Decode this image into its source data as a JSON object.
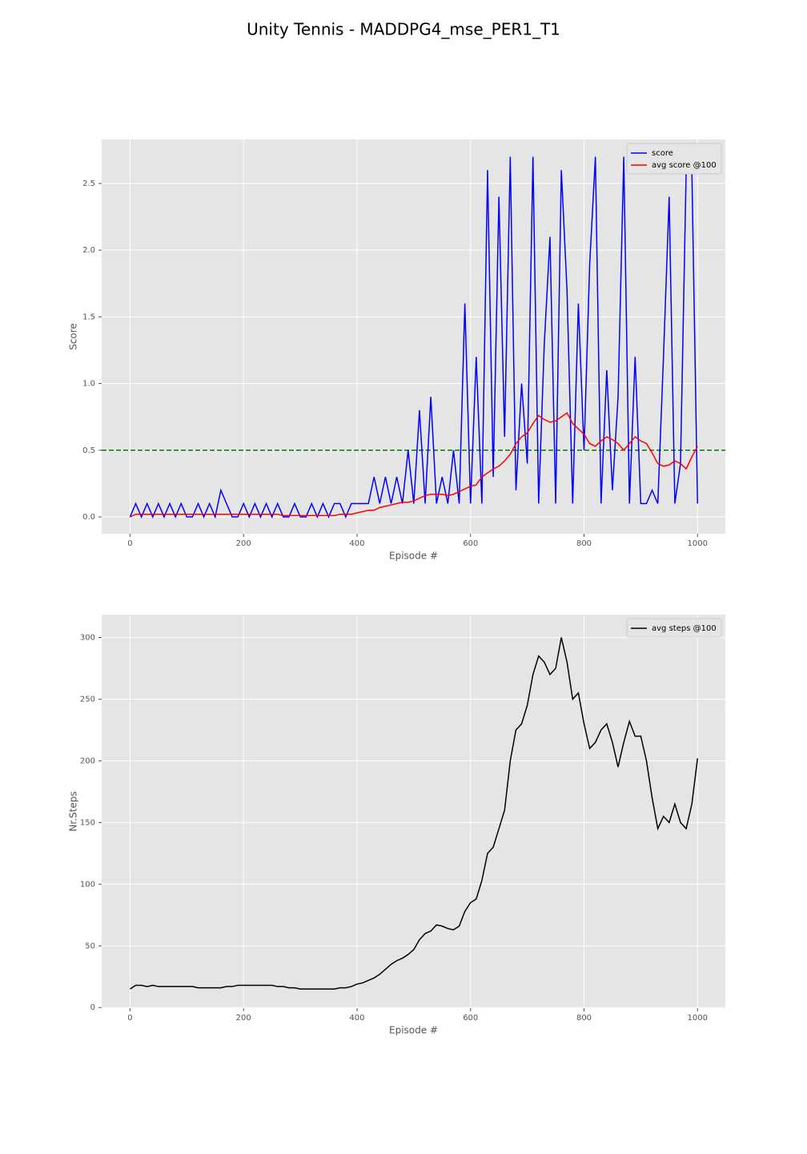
{
  "title": "Unity Tennis - MADDPG4_mse_PER1_T1",
  "chart_data": [
    {
      "type": "line",
      "xlabel": "Episode #",
      "ylabel": "Score",
      "x": [
        0,
        10,
        20,
        30,
        40,
        50,
        60,
        70,
        80,
        90,
        100,
        110,
        120,
        130,
        140,
        150,
        160,
        170,
        180,
        190,
        200,
        210,
        220,
        230,
        240,
        250,
        260,
        270,
        280,
        290,
        300,
        310,
        320,
        330,
        340,
        350,
        360,
        370,
        380,
        390,
        400,
        410,
        420,
        430,
        440,
        450,
        460,
        470,
        480,
        490,
        500,
        510,
        520,
        530,
        540,
        550,
        560,
        570,
        580,
        590,
        600,
        610,
        620,
        630,
        640,
        650,
        660,
        670,
        680,
        690,
        700,
        710,
        720,
        730,
        740,
        750,
        760,
        770,
        780,
        790,
        800,
        810,
        820,
        830,
        840,
        850,
        860,
        870,
        880,
        890,
        900,
        910,
        920,
        930,
        940,
        950,
        960,
        970,
        980,
        990,
        1000
      ],
      "series": [
        {
          "name": "score",
          "color": "#0000ff",
          "values": [
            0,
            0.1,
            0,
            0.1,
            0,
            0.1,
            0,
            0.1,
            0,
            0.1,
            0,
            0,
            0.1,
            0,
            0.1,
            0,
            0.2,
            0.1,
            0,
            0,
            0.1,
            0,
            0.1,
            0,
            0.1,
            0,
            0.1,
            0,
            0,
            0.1,
            0,
            0,
            0.1,
            0,
            0.1,
            0,
            0.1,
            0.1,
            0,
            0.1,
            0.1,
            0.1,
            0.1,
            0.3,
            0.1,
            0.3,
            0.1,
            0.3,
            0.1,
            0.5,
            0.1,
            0.8,
            0.1,
            0.9,
            0.1,
            0.3,
            0.1,
            0.5,
            0.1,
            1.6,
            0.1,
            1.2,
            0.1,
            2.6,
            0.3,
            2.4,
            0.6,
            2.7,
            0.2,
            1.0,
            0.4,
            2.7,
            0.1,
            1.3,
            2.1,
            0.1,
            2.6,
            1.7,
            0.1,
            1.6,
            0.5,
            1.9,
            2.7,
            0.1,
            1.1,
            0.2,
            0.9,
            2.7,
            0.1,
            1.2,
            0.1,
            0.1,
            0.2,
            0.1,
            1.2,
            2.4,
            0.1,
            0.4,
            2.6,
            2.6,
            0.1
          ]
        },
        {
          "name": "avg score @100",
          "color": "#ff0000",
          "values": [
            0,
            0.02,
            0.02,
            0.02,
            0.02,
            0.02,
            0.02,
            0.02,
            0.02,
            0.02,
            0.02,
            0.02,
            0.02,
            0.02,
            0.02,
            0.02,
            0.02,
            0.02,
            0.02,
            0.02,
            0.02,
            0.02,
            0.02,
            0.02,
            0.02,
            0.02,
            0.02,
            0.01,
            0.01,
            0.01,
            0.01,
            0.01,
            0.01,
            0.01,
            0.01,
            0.01,
            0.01,
            0.02,
            0.02,
            0.02,
            0.03,
            0.04,
            0.05,
            0.05,
            0.07,
            0.08,
            0.09,
            0.1,
            0.11,
            0.11,
            0.12,
            0.14,
            0.16,
            0.17,
            0.17,
            0.17,
            0.16,
            0.17,
            0.19,
            0.21,
            0.23,
            0.24,
            0.3,
            0.33,
            0.36,
            0.38,
            0.42,
            0.47,
            0.55,
            0.6,
            0.63,
            0.7,
            0.76,
            0.73,
            0.71,
            0.72,
            0.75,
            0.78,
            0.7,
            0.66,
            0.62,
            0.55,
            0.53,
            0.57,
            0.6,
            0.58,
            0.55,
            0.5,
            0.55,
            0.6,
            0.57,
            0.55,
            0.48,
            0.4,
            0.38,
            0.39,
            0.42,
            0.4,
            0.36,
            0.45,
            0.53
          ]
        }
      ],
      "hline": 0.5,
      "hline_color": "#008000",
      "xlim": [
        -50,
        1049
      ],
      "ylim": [
        -0.126,
        2.83
      ],
      "xticks": [
        0,
        200,
        400,
        600,
        800,
        1000
      ],
      "yticks": [
        {
          "value": 0,
          "label": "0.0"
        },
        0.5,
        {
          "value": 1,
          "label": "1.0"
        },
        1.5,
        {
          "value": 2,
          "label": "2.0"
        },
        2.5
      ],
      "grid": true,
      "legend": "upper-right"
    },
    {
      "type": "line",
      "xlabel": "Episode #",
      "ylabel": "Nr.Steps",
      "x": [
        0,
        10,
        20,
        30,
        40,
        50,
        60,
        70,
        80,
        90,
        100,
        110,
        120,
        130,
        140,
        150,
        160,
        170,
        180,
        190,
        200,
        210,
        220,
        230,
        240,
        250,
        260,
        270,
        280,
        290,
        300,
        310,
        320,
        330,
        340,
        350,
        360,
        370,
        380,
        390,
        400,
        410,
        420,
        430,
        440,
        450,
        460,
        470,
        480,
        490,
        500,
        510,
        520,
        530,
        540,
        550,
        560,
        570,
        580,
        590,
        600,
        610,
        620,
        630,
        640,
        650,
        660,
        670,
        680,
        690,
        700,
        710,
        720,
        730,
        740,
        750,
        760,
        770,
        780,
        790,
        800,
        810,
        820,
        830,
        840,
        850,
        860,
        870,
        880,
        890,
        900,
        910,
        920,
        930,
        940,
        950,
        960,
        970,
        980,
        990,
        1000
      ],
      "series": [
        {
          "name": "avg steps @100",
          "color": "#000000",
          "values": [
            15,
            18,
            18,
            17,
            18,
            17,
            17,
            17,
            17,
            17,
            17,
            17,
            16,
            16,
            16,
            16,
            16,
            17,
            17,
            18,
            18,
            18,
            18,
            18,
            18,
            18,
            17,
            17,
            16,
            16,
            15,
            15,
            15,
            15,
            15,
            15,
            15,
            16,
            16,
            17,
            19,
            20,
            22,
            24,
            27,
            31,
            35,
            38,
            40,
            43,
            47,
            55,
            60,
            62,
            67,
            66,
            64,
            63,
            66,
            78,
            85,
            88,
            103,
            125,
            130,
            145,
            160,
            200,
            225,
            230,
            245,
            270,
            285,
            280,
            270,
            275,
            300,
            280,
            250,
            255,
            230,
            210,
            215,
            225,
            230,
            215,
            195,
            215,
            232,
            220,
            220,
            200,
            170,
            145,
            155,
            150,
            165,
            150,
            145,
            165,
            202
          ]
        }
      ],
      "xlim": [
        -50,
        1049
      ],
      "ylim": [
        -0.5,
        318.5
      ],
      "xticks": [
        0,
        200,
        400,
        600,
        800,
        1000
      ],
      "yticks": [
        0,
        50,
        100,
        150,
        200,
        250,
        300
      ],
      "grid": true,
      "legend": "upper-right"
    }
  ]
}
